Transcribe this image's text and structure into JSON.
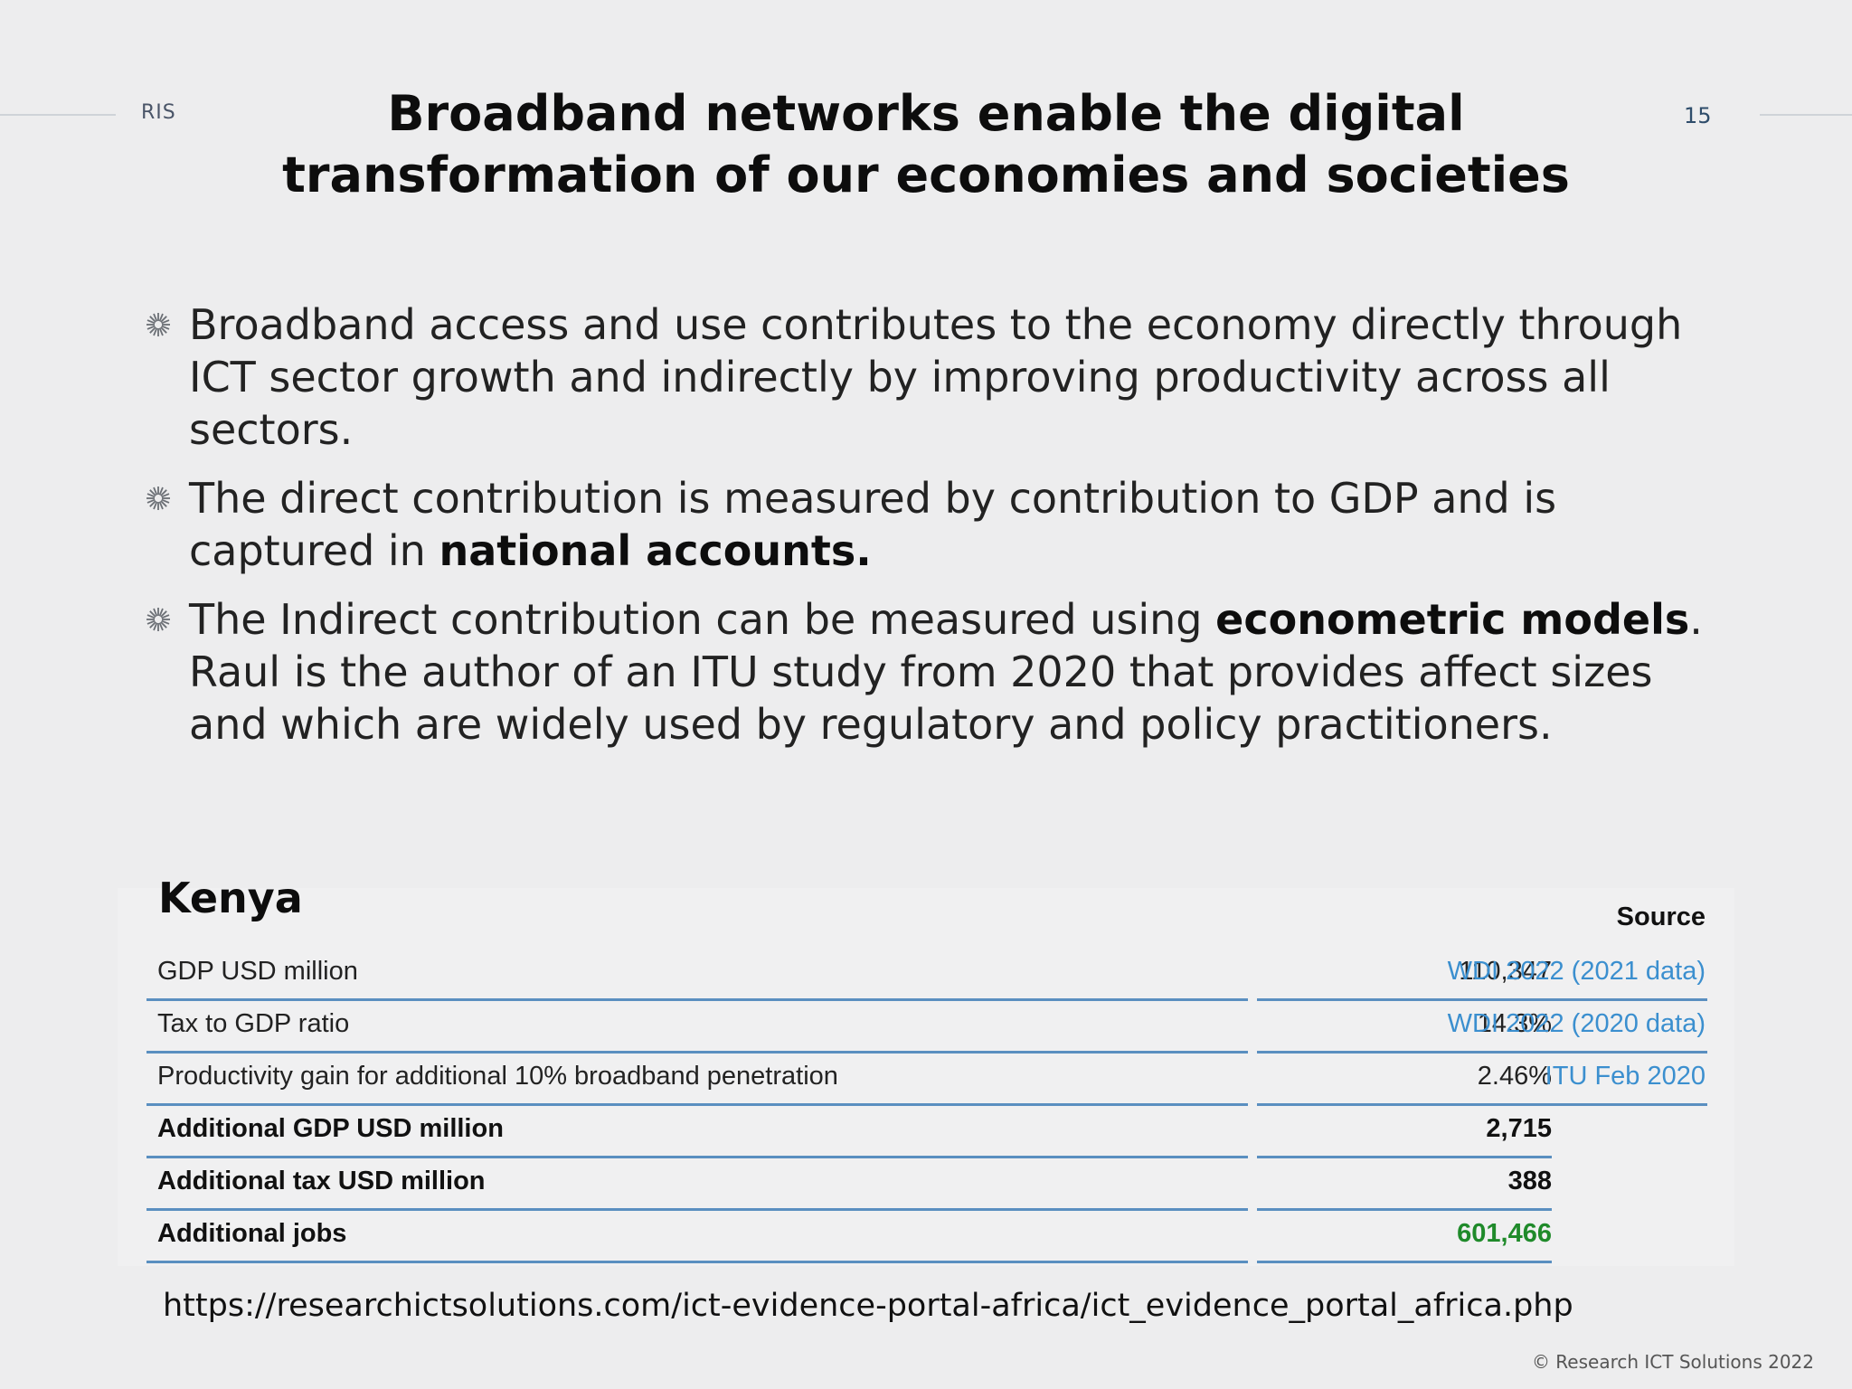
{
  "header": {
    "brand": "RIS",
    "page_number": "15",
    "title": "Broadband networks enable the digital transformation of our economies and societies"
  },
  "bullets": [
    {
      "parts": [
        {
          "text": "Broadband access and use contributes to the economy directly through ICT sector growth and indirectly by improving productivity across all sectors.",
          "bold": false
        }
      ]
    },
    {
      "parts": [
        {
          "text": "The direct contribution is measured by contribution to GDP and is captured in ",
          "bold": false
        },
        {
          "text": "national accounts.",
          "bold": true
        }
      ]
    },
    {
      "parts": [
        {
          "text": "The Indirect contribution can be measured using ",
          "bold": false
        },
        {
          "text": "econometric models",
          "bold": true
        },
        {
          "text": ". Raul is the author of an ITU study from 2020 that provides affect sizes and which are widely used by regulatory and policy practitioners.",
          "bold": false
        }
      ]
    }
  ],
  "table": {
    "country": "Kenya",
    "source_header": "Source",
    "rows": [
      {
        "label": "GDP USD million",
        "value": "110,347",
        "source": "WDI 2022 (2021 data)",
        "bold": false
      },
      {
        "label": "Tax to GDP ratio",
        "value": "14.3%",
        "source": "WDI 2022 (2020 data)",
        "bold": false
      },
      {
        "label": "Productivity gain for additional 10% broadband penetration",
        "value": "2.46%",
        "source": "ITU Feb 2020",
        "bold": false
      },
      {
        "label": "Additional GDP USD million",
        "value": "2,715",
        "source": "",
        "bold": true
      },
      {
        "label": "Additional tax USD million",
        "value": "388",
        "source": "",
        "bold": true
      },
      {
        "label": "Additional jobs",
        "value": "601,466",
        "source": "",
        "bold": true,
        "value_color": "#1f8a2a"
      }
    ]
  },
  "footer": {
    "url": "https://researchictsolutions.com/ict-evidence-portal-africa/ict_evidence_portal_africa.php",
    "copyright": "© Research ICT Solutions 2022"
  },
  "icons": {
    "bullet": "sunburst-icon"
  }
}
